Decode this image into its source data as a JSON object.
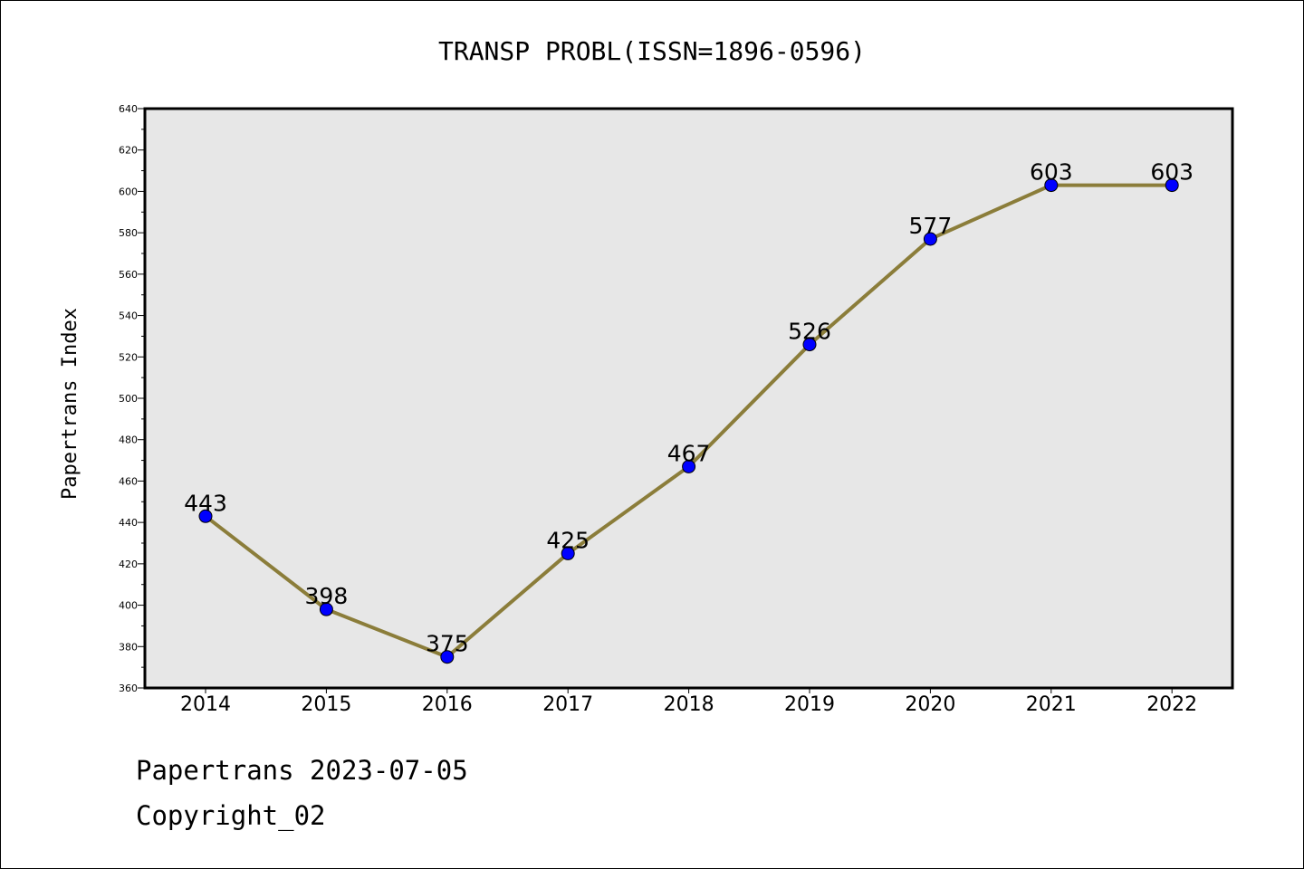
{
  "chart_data": {
    "type": "line",
    "title": "TRANSP PROBL(ISSN=1896-0596)",
    "xlabel": "",
    "ylabel": "Papertrans Index",
    "categories": [
      "2014",
      "2015",
      "2016",
      "2017",
      "2018",
      "2019",
      "2020",
      "2021",
      "2022"
    ],
    "series": [
      {
        "values": [
          443,
          398,
          375,
          425,
          467,
          526,
          577,
          603,
          603
        ]
      }
    ],
    "ylim": [
      360,
      640
    ],
    "yticks": [
      360,
      380,
      400,
      420,
      440,
      460,
      480,
      500,
      520,
      540,
      560,
      580,
      600,
      620,
      640
    ],
    "grid": false,
    "legend": "none",
    "data_labels": true,
    "colors": {
      "line": "#8B7D3A",
      "marker": "#0000FF",
      "plot_background": "#E7E7E7"
    }
  },
  "footer": {
    "source": "Papertrans 2023-07-05",
    "copyright": "Copyright_02"
  }
}
